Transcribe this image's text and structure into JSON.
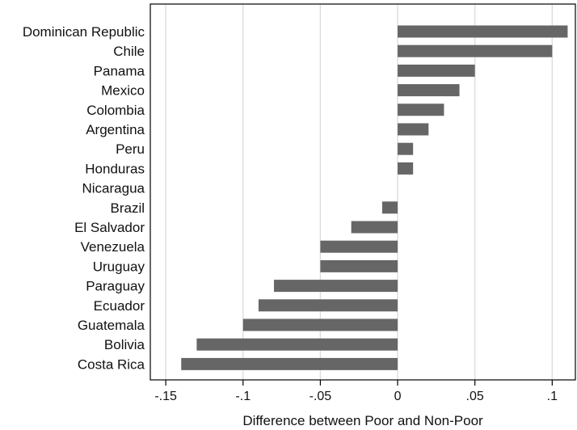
{
  "chart_data": {
    "type": "bar",
    "orientation": "horizontal",
    "categories": [
      "Dominican Republic",
      "Chile",
      "Panama",
      "Mexico",
      "Colombia",
      "Argentina",
      "Peru",
      "Honduras",
      "Nicaragua",
      "Brazil",
      "El Salvador",
      "Venezuela",
      "Uruguay",
      "Paraguay",
      "Ecuador",
      "Guatemala",
      "Bolivia",
      "Costa Rica"
    ],
    "values": [
      0.11,
      0.1,
      0.05,
      0.04,
      0.03,
      0.02,
      0.01,
      0.01,
      0.0,
      -0.01,
      -0.03,
      -0.05,
      -0.05,
      -0.08,
      -0.09,
      -0.1,
      -0.13,
      -0.14
    ],
    "xlabel": "Difference between Poor and Non-Poor",
    "ylabel": "",
    "title": "",
    "xlim": [
      -0.16,
      0.115
    ],
    "xticks": [
      -0.15,
      -0.1,
      -0.05,
      0,
      0.05,
      0.1
    ],
    "xtick_labels": [
      "-.15",
      "-.1",
      "-.05",
      "0",
      ".05",
      ".1"
    ],
    "grid": true,
    "bar_color": "#666666",
    "grid_color": "#dddddd"
  }
}
